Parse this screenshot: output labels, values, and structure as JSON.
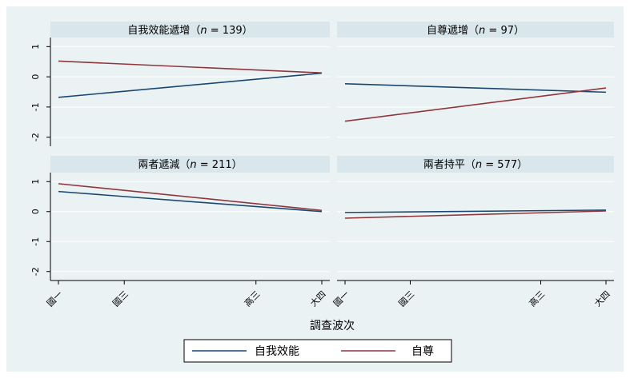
{
  "chart_data": {
    "type": "line",
    "layout": "2x2 small multiples",
    "xlabel": "調查波次",
    "ylabel": "",
    "x_categories": [
      "國一",
      "國三",
      "高三",
      "大四"
    ],
    "ylim": [
      -2.3,
      1.3
    ],
    "yticks": [
      1,
      0,
      -1,
      -2
    ],
    "legend": {
      "placement": "bottom-center",
      "entries": [
        {
          "name": "自我效能",
          "color": "#1a476f"
        },
        {
          "name": "自尊",
          "color": "#90353b"
        }
      ]
    },
    "panels": [
      {
        "title_text": "自我效能遞增",
        "n_label": "n",
        "n_value": "139",
        "series": [
          {
            "name": "自我效能",
            "values": [
              -0.68,
              null,
              null,
              0.12
            ]
          },
          {
            "name": "自尊",
            "values": [
              0.52,
              null,
              null,
              0.13
            ]
          }
        ]
      },
      {
        "title_text": "自尊遞增",
        "n_label": "n",
        "n_value": "97",
        "series": [
          {
            "name": "自我效能",
            "values": [
              -0.23,
              null,
              null,
              -0.51
            ]
          },
          {
            "name": "自尊",
            "values": [
              -1.47,
              null,
              null,
              -0.37
            ]
          }
        ]
      },
      {
        "title_text": "兩者遞減",
        "n_label": "n",
        "n_value": "211",
        "series": [
          {
            "name": "自我效能",
            "values": [
              0.67,
              null,
              null,
              0.0
            ]
          },
          {
            "name": "自尊",
            "values": [
              0.93,
              null,
              null,
              0.04
            ]
          }
        ]
      },
      {
        "title_text": "兩者持平",
        "n_label": "n",
        "n_value": "577",
        "series": [
          {
            "name": "自我效能",
            "values": [
              -0.03,
              null,
              null,
              0.05
            ]
          },
          {
            "name": "自尊",
            "values": [
              -0.22,
              null,
              null,
              0.02
            ]
          }
        ]
      }
    ],
    "x_positions": [
      1,
      2,
      4,
      5
    ],
    "grid": true
  },
  "colors": {
    "background": "#eaf2f3",
    "panel_header": "#d9e6eb",
    "plot_bg": "#eaf2f3",
    "grid": "#ffffff",
    "series1": "#1a476f",
    "series2": "#90353b"
  }
}
